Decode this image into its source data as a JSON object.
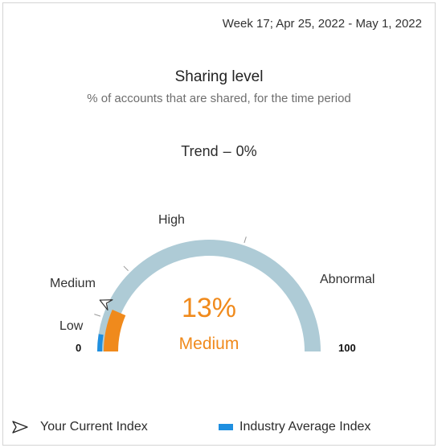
{
  "header": {
    "date_range": "Week 17; Apr 25, 2022 - May 1, 2022"
  },
  "card": {
    "title": "Sharing level",
    "subtitle": "% of accounts that are shared, for the time period",
    "trend_label": "Trend",
    "trend_dash": "–",
    "trend_value": "0%"
  },
  "gauge": {
    "min_label": "0",
    "max_label": "100",
    "zones": {
      "low": "Low",
      "medium": "Medium",
      "high": "High",
      "abnormal": "Abnormal"
    },
    "current_value_text": "13%",
    "current_level": "Medium",
    "current_value": 13,
    "industry_average_value": 5,
    "colors": {
      "track": "#aecbd6",
      "fill": "#f08a1c",
      "industry": "#1f8fe0",
      "text_accent": "#f08a1c"
    }
  },
  "legend": {
    "current_index_label": "Your Current Index",
    "current_index_icon": "pointer-arrow-icon",
    "industry_average_label": "Industry Average Index",
    "industry_average_icon": "blue-bar-swatch"
  }
}
